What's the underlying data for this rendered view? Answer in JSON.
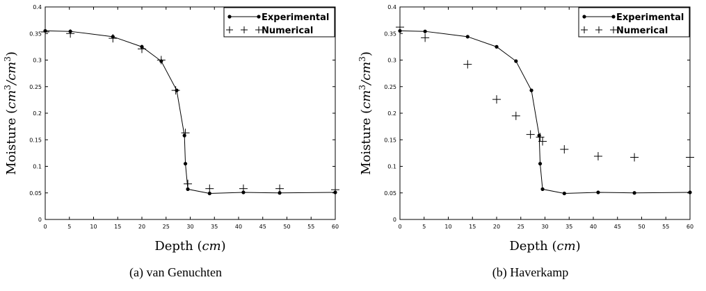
{
  "chart_data": [
    {
      "type": "line",
      "panel_caption": "(a) van Genuchten",
      "xlabel": "Depth (cm)",
      "ylabel": "Moisture (cm^3/cm^3)",
      "xlim": [
        0,
        60
      ],
      "ylim": [
        0,
        0.4
      ],
      "x_ticks": [
        "0",
        "5",
        "10",
        "15",
        "20",
        "25",
        "30",
        "35",
        "40",
        "45",
        "50",
        "55",
        "60"
      ],
      "y_ticks": [
        "0",
        "0.05",
        "0.1",
        "0.15",
        "0.2",
        "0.25",
        "0.3",
        "0.35",
        "0.4"
      ],
      "legend_position": "top-right",
      "grid": false,
      "series": [
        {
          "name": "Experimental",
          "style": "line-with-dots",
          "color": "#000000",
          "x": [
            0,
            5.2,
            14,
            20,
            24,
            27.2,
            28.8,
            29,
            29.5,
            34,
            41,
            48.5,
            60
          ],
          "y": [
            0.355,
            0.354,
            0.344,
            0.325,
            0.298,
            0.243,
            0.158,
            0.105,
            0.057,
            0.049,
            0.051,
            0.05,
            0.051
          ]
        },
        {
          "name": "Numerical",
          "style": "plus-markers",
          "color": "#000000",
          "x": [
            0,
            5.2,
            14,
            20,
            24,
            27,
            29,
            29.5,
            34,
            41,
            48.5,
            60
          ],
          "y": [
            0.353,
            0.35,
            0.341,
            0.321,
            0.3,
            0.243,
            0.163,
            0.067,
            0.058,
            0.058,
            0.058,
            0.056
          ]
        }
      ]
    },
    {
      "type": "line",
      "panel_caption": "(b) Haverkamp",
      "xlabel": "Depth (cm)",
      "ylabel": "Moisture (cm^3/cm^3)",
      "xlim": [
        0,
        60
      ],
      "ylim": [
        0,
        0.4
      ],
      "x_ticks": [
        "0",
        "5",
        "10",
        "15",
        "20",
        "25",
        "30",
        "35",
        "40",
        "45",
        "50",
        "55",
        "60"
      ],
      "y_ticks": [
        "0",
        "0.05",
        "0.1",
        "0.15",
        "0.2",
        "0.25",
        "0.3",
        "0.35",
        "0.4"
      ],
      "legend_position": "top-right",
      "grid": false,
      "series": [
        {
          "name": "Experimental",
          "style": "line-with-dots",
          "color": "#000000",
          "x": [
            0,
            5.2,
            14,
            20,
            24,
            27.2,
            28.8,
            29,
            29.5,
            34,
            41,
            48.5,
            60
          ],
          "y": [
            0.355,
            0.354,
            0.344,
            0.325,
            0.298,
            0.243,
            0.158,
            0.105,
            0.057,
            0.049,
            0.051,
            0.05,
            0.051
          ]
        },
        {
          "name": "Numerical",
          "style": "plus-markers",
          "color": "#000000",
          "x": [
            0,
            5.2,
            14,
            20,
            24,
            27,
            29,
            29.5,
            34,
            41,
            48.5,
            60
          ],
          "y": [
            0.362,
            0.342,
            0.292,
            0.226,
            0.195,
            0.16,
            0.155,
            0.147,
            0.132,
            0.119,
            0.117,
            0.117
          ]
        }
      ]
    }
  ]
}
